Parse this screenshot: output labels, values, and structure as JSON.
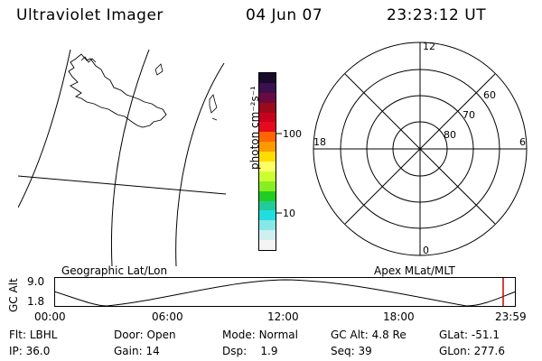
{
  "header": {
    "instrument": "Ultraviolet Imager",
    "date": "04 Jun 07",
    "time": "23:23:12 UT"
  },
  "colorbar": {
    "unit_label": "photon cm⁻²s⁻¹",
    "tick_labels": [
      "100",
      "10"
    ],
    "colors": [
      "#1a0a2a",
      "#3a1050",
      "#6a0a40",
      "#9a0a1a",
      "#c8001e",
      "#e60a1e",
      "#ff6600",
      "#ff9900",
      "#ffdd00",
      "#ffff66",
      "#ccff33",
      "#88ee22",
      "#22cc22",
      "#22cc99",
      "#22dddd",
      "#88e8e8",
      "#d0f0f0",
      "#f4f4f4"
    ]
  },
  "polar_plot": {
    "mlt_labels": {
      "top": "12",
      "left": "18",
      "right": "6",
      "bottom": "0"
    },
    "lat_labels": [
      "60",
      "70",
      "80"
    ]
  },
  "altitude_panel": {
    "left_label": "Geographic Lat/Lon",
    "right_label": "Apex MLat/MLT",
    "axis_title": "GC Alt",
    "y_ticks": [
      "9.0",
      "1.8"
    ],
    "time_ticks": [
      "00:00",
      "06:00",
      "12:00",
      "18:00",
      "23:59"
    ],
    "current_time_marker_color": "#cc0000"
  },
  "status": {
    "row1": [
      {
        "label": "Flt:",
        "value": "LBHL"
      },
      {
        "label": "Door:",
        "value": "Open"
      },
      {
        "label": "Mode:",
        "value": "Normal"
      },
      {
        "label": "GC Alt:",
        "value": "4.8 Re"
      },
      {
        "label": "GLat:",
        "value": "-51.1"
      }
    ],
    "row2": [
      {
        "label": "IP:",
        "value": "36.0"
      },
      {
        "label": "Gain:",
        "value": "14"
      },
      {
        "label": "Dsp:",
        "value": "1.9"
      },
      {
        "label": "Seq:",
        "value": "39"
      },
      {
        "label": "GLon:",
        "value": "277.6"
      }
    ]
  }
}
